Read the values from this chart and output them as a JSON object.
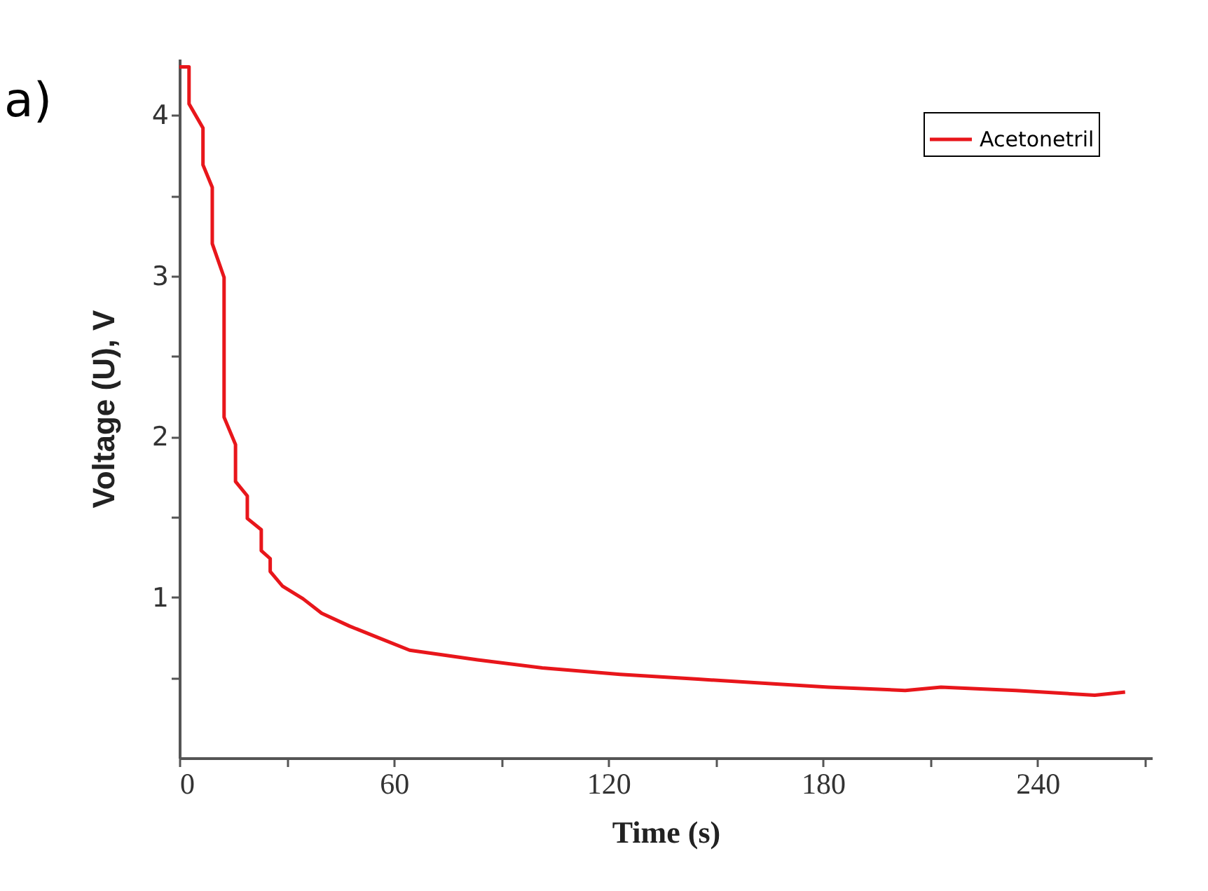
{
  "chart_data": {
    "type": "line",
    "title": "a)",
    "xlabel": "Time (s)",
    "ylabel": "Voltage (U), V",
    "xlim": [
      0,
      272
    ],
    "ylim": [
      0,
      4.35
    ],
    "xticks": [
      0,
      {
        "value": 30,
        "label": null
      },
      60,
      {
        "value": 90,
        "label": null
      },
      120,
      {
        "value": 150,
        "label": null
      },
      180,
      {
        "value": 210,
        "label": null
      },
      240,
      {
        "value": 270,
        "label": null
      }
    ],
    "yticks": [
      {
        "value": 0.5,
        "label": null
      },
      1,
      {
        "value": 1.5,
        "label": null
      },
      2,
      {
        "value": 2.5,
        "label": null
      },
      3,
      {
        "value": 3.5,
        "label": null
      },
      4
    ],
    "grid": false,
    "legend": "top right",
    "marker": "none",
    "line_style": "solid",
    "series": [
      {
        "name": "Acetonetril",
        "color": "#e8161b",
        "x": [
          0,
          2.7,
          2.7,
          6.6,
          6.6,
          9.2,
          9.2,
          12.5,
          12.5,
          15.7,
          15.7,
          19,
          19,
          22.9,
          22.9,
          25.4,
          25.4,
          28.8,
          34.6,
          39.8,
          47.6,
          55.4,
          64.4,
          83.4,
          101.5,
          123.3,
          145,
          167,
          181.5,
          203,
          213,
          234,
          256,
          264.5
        ],
        "values": [
          4.3,
          4.3,
          4.07,
          3.92,
          3.69,
          3.55,
          3.2,
          2.99,
          2.12,
          1.95,
          1.72,
          1.63,
          1.49,
          1.42,
          1.29,
          1.24,
          1.16,
          1.07,
          0.99,
          0.9,
          0.82,
          0.75,
          0.67,
          0.61,
          0.56,
          0.52,
          0.49,
          0.46,
          0.44,
          0.42,
          0.44,
          0.42,
          0.39,
          0.41
        ]
      }
    ]
  }
}
